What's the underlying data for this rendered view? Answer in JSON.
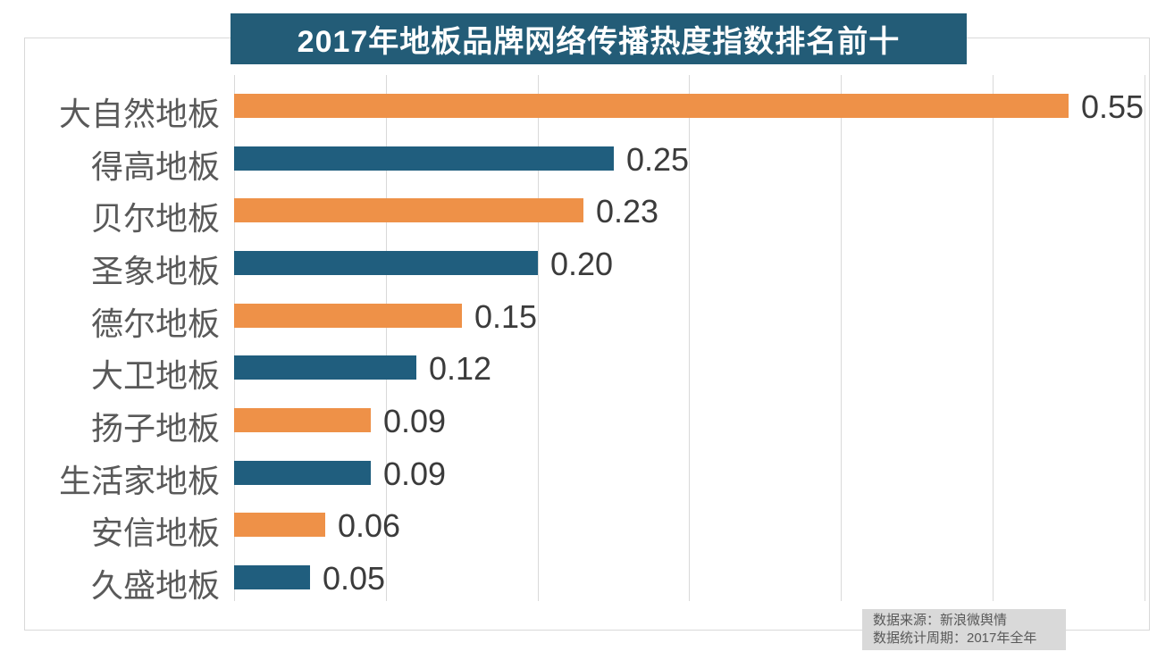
{
  "banner": {
    "title": "2017年地板品牌网络传播热度指数排名前十",
    "bg_color": "#235C77",
    "text_color": "#FFFFFF"
  },
  "source_note": {
    "line1": "数据来源：新浪微舆情",
    "line2": "数据统计周期：2017年全年",
    "bg_color": "#D9D9D9",
    "text_color": "#595959"
  },
  "colors": {
    "bar_orange": "#EE9148",
    "bar_blue": "#205E7E",
    "gridline": "#D9D9D9",
    "outer_border": "#D9D9D9",
    "category_text": "#595959",
    "value_text": "#3B3B3B"
  },
  "chart_data": {
    "type": "bar",
    "orientation": "horizontal",
    "title": "2017年地板品牌网络传播热度指数排名前十",
    "categories": [
      "大自然地板",
      "得高地板",
      "贝尔地板",
      "圣象地板",
      "德尔地板",
      "大卫地板",
      "扬子地板",
      "生活家地板",
      "安信地板",
      "久盛地板"
    ],
    "values": [
      0.55,
      0.25,
      0.23,
      0.2,
      0.15,
      0.12,
      0.09,
      0.09,
      0.06,
      0.05
    ],
    "value_labels": [
      "0.55",
      "0.25",
      "0.23",
      "0.20",
      "0.15",
      "0.12",
      "0.09",
      "0.09",
      "0.06",
      "0.05"
    ],
    "bar_colors": [
      "#EE9148",
      "#205E7E",
      "#EE9148",
      "#205E7E",
      "#EE9148",
      "#205E7E",
      "#EE9148",
      "#205E7E",
      "#EE9148",
      "#205E7E"
    ],
    "xlim": [
      0,
      0.6
    ],
    "gridline_step": 0.1,
    "grid": true,
    "legend": "none",
    "xlabel": "",
    "ylabel": ""
  }
}
